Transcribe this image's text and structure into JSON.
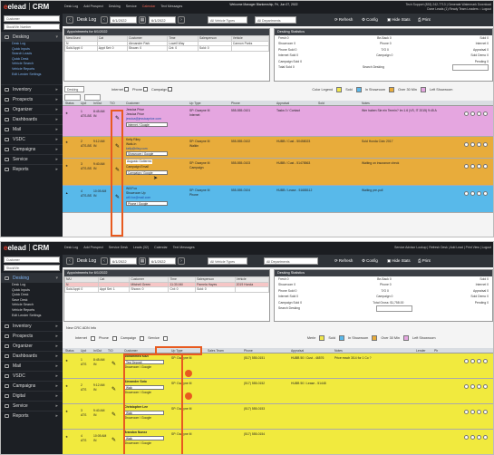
{
  "shot1": {
    "topbar": {
      "logo": "elead",
      "product": "CRM",
      "nav": [
        "Desk Log",
        "Add Prospect",
        "Desking",
        "Service",
        "Calendar",
        "Text Messages"
      ],
      "welcome": "Welcome Manager Blankenship, Fri, Jun 07, 2022",
      "right1": "Tech Support (833) 242-7713 | Generate Watermark Download",
      "right2": "Done Leads (1)  Ready Team Leaders  ○ Logout"
    },
    "sidebar": {
      "search_placeholder": "Customer",
      "search2": "Stock/Vin Number",
      "items": [
        "Desking",
        "Inventory",
        "Prospects",
        "Organizer",
        "Dashboards",
        "Mail",
        "VSDC",
        "Campaigns",
        "Service",
        "Reports"
      ],
      "desking_sub": [
        "Desk Log",
        "Quick Inputs",
        "Search Leads",
        "Quick Desk",
        "Vehicle Search",
        "Vehicle Reports",
        "Edit Lender Settings"
      ]
    },
    "toolbar": {
      "title": "Desk Log",
      "date_from": "6/1/2022",
      "date_to": "6/1/2022",
      "vehicles": "All Vehicle Types",
      "depts": "All Departments",
      "refresh": "Refresh",
      "config": "Config",
      "hide": "Hide Stats",
      "print": "Print"
    },
    "appointments": {
      "title": "Appointments for 6/1/2022",
      "headers": [
        "New/Used",
        "Cat",
        "Customer",
        "Time",
        "Salesperson",
        "Vehicle"
      ],
      "row": [
        "N",
        "",
        "Alexander Park",
        "Lowell Way",
        "",
        "Cannon Parks"
      ],
      "foot": [
        "Sold Appt: 0",
        "Appt Set: 0",
        "Shown: 0",
        "Cnt: 0",
        "Sold: 0"
      ]
    },
    "stats": {
      "title": "Desking Statistics",
      "rows": [
        [
          "Fresh 0",
          "Be-Back 0",
          "Sold 0"
        ],
        [
          "Showroom 0",
          "Phone 0",
          "Internet 0"
        ],
        [
          "Phone Sold 0",
          "T/O 0",
          "Appraisal 0"
        ],
        [
          "Internet Sold 0",
          "Campaign 0",
          "Sold Demo 0"
        ],
        [
          "Campaign Sold 0",
          "",
          "Pending 0"
        ],
        [
          "Total Sold 0",
          "",
          ""
        ]
      ],
      "search_label": "Search Desking"
    },
    "filters": {
      "desking": "Desking",
      "internet": "Internet",
      "phone": "Phone",
      "campaign": "Campaign",
      "legend": "Color Legend",
      "sold": "Sold",
      "in_showroom": "In Showroom",
      "over30": "Over 30 Min",
      "left": "Left Showroom"
    },
    "grid_headers": [
      "Status",
      "Up#",
      "In/Out",
      "T/O",
      "Customer",
      "Up Type",
      "Phone",
      "Appraisal",
      "Sold",
      "Notes"
    ],
    "rows": [
      {
        "color": "#e5a6e0",
        "name": "Jessica Price",
        "line2": "Jessica Price",
        "email": "jessica@jessicaprice.com",
        "phone": "555-555-0101",
        "type": "SP: Dwayne M",
        "sp": "Internet",
        "extra": "Tasks 0 / Contact",
        "note": "Wer haben Sie ein Termin? Im 1.6 (VS, IT 2015) 9:45 A"
      },
      {
        "color": "#e8ac3b",
        "name": "Kelly Riley",
        "line2": "Walk-In",
        "email": "kelly@riley.com",
        "phone": "555-555-0102",
        "type": "SP: Dwayne M",
        "sp": "Walkin",
        "extra": "HUBB / Cust - 50458023",
        "note": "Sold Honda Civic 2017"
      },
      {
        "color": "#e8ac3b",
        "name": "Augusto Gutierrez",
        "line2": "Campaign Email",
        "email": "",
        "phone": "555-555-0103",
        "type": "SP: Dwayne M",
        "sp": "Campaign",
        "extra": "HUBB / Cust - 51478563",
        "note": "Waiting on insurance check"
      },
      {
        "color": "#58b9ea",
        "name": "Will Fox",
        "line2": "Showroom Up",
        "email": "will.fox@mail.com",
        "phone": "555-555-0104",
        "type": "SP: Dwayne M",
        "sp": "Phone",
        "extra": "HUBB / Lease - 51688112",
        "note": "Waiting pre-pull"
      }
    ]
  },
  "shot2": {
    "topbar": {
      "logo": "elead",
      "product": "CRM",
      "nav": [
        "Desk Log",
        "Add Prospect",
        "Service Desk",
        "Leads (32)",
        "Calendar",
        "Text Messages"
      ],
      "right": "Service Advisor Lookup | Refresh Desk | Add Lead | Print View | Logout"
    },
    "sidebar": {
      "search_placeholder": "Customer",
      "search2": "Stock/Vin",
      "items": [
        "Desking",
        "Inventory",
        "Prospects",
        "Organizer",
        "Dashboards",
        "Mail",
        "VSDC",
        "Campaigns",
        "Digital",
        "Service",
        "Reports"
      ],
      "desking_sub": [
        "Desk Log",
        "Quick Inputs",
        "Quick Desk",
        "Save Desk",
        "Vehicle Search",
        "Vehicle Reports",
        "Edit Lender Settings"
      ]
    },
    "toolbar": {
      "title": "Desk Log",
      "date_from": "6/1/2022",
      "date_to": "6/1/2022",
      "vehicles": "All Vehicle Types",
      "depts": "All Departments",
      "refresh": "Refresh",
      "config": "Config",
      "hide": "Hide Stats",
      "print": "Print"
    },
    "appointments": {
      "title": "Appointments for 6/1/2022",
      "headers": [
        "N/U",
        "Cat",
        "Customer",
        "Time",
        "Salesperson",
        "Vehicle"
      ],
      "row": [
        "N",
        "",
        "Mitchell Green",
        "11:30 AM",
        "Pamela Hayes",
        "2019 Honda"
      ],
      "foot": [
        "Sold Appt: 0",
        "Appt Set: 1",
        "Shown: 0",
        "Cnt: 0",
        "Sold: 0"
      ]
    },
    "stats": {
      "title": "Desking Statistics",
      "rows": [
        [
          "Fresh 0",
          "Be-Back 0",
          "Sold 0"
        ],
        [
          "Showroom 0",
          "Phone 0",
          "Internet 0"
        ],
        [
          "Phone Sold 0",
          "T/O 0",
          "Appraisal 0"
        ],
        [
          "Internet Sold 0",
          "Campaign 0",
          "Sold Demo 0"
        ],
        [
          "Campaign Sold 0",
          "",
          "Pending 0"
        ],
        [
          "Total Sold 0",
          "",
          ""
        ]
      ],
      "search_label": "Search Desking",
      "gross": "Total Gross: $1,758.00"
    },
    "filter_title": "New CRC ADN Info",
    "filters": {
      "internet": "Internet",
      "phone": "Phone",
      "campaign": "Campaign",
      "service": "Service",
      "all": "All",
      "legend": "Merle",
      "sold": "Sold",
      "in_showroom": "In Showroom",
      "over30": "Over 30 Min",
      "left": "Left Showroom"
    },
    "grid_headers": [
      "Status",
      "Up#",
      "In/Out",
      "T/O",
      "Customer",
      "Up Type",
      "Sales Team",
      "Phone",
      "Appraisal",
      "Notes",
      "Lender",
      "Ph"
    ],
    "rows": [
      {
        "name": "Mohammed Kazi",
        "source": "Test Deposit",
        "src2": "Showroom / Google",
        "sp": "SP: Dwayne M",
        "phone": "(517) 555-0151",
        "note": "Price reach 3/14 for 1 Co ?",
        "extra": "HUBB 50 / Cust - 46576"
      },
      {
        "name": "Alexander Soto",
        "source": "Walk",
        "src2": "Showroom / Google",
        "sp": "SP: Dwayne M",
        "phone": "(517) 555-0152",
        "note": "",
        "extra": "HUBB 50 / Lease - 51448"
      },
      {
        "name": "Christopher Lee",
        "source": "Walk",
        "src2": "Showroom / Google",
        "sp": "SP: Dwayne M",
        "phone": "(517) 555-0153",
        "note": "",
        "extra": ""
      },
      {
        "name": "Brandon Nunez",
        "source": "Walk",
        "src2": "Showroom / Google",
        "sp": "SP: Dwayne M",
        "phone": "(517) 555-0154",
        "note": "",
        "extra": ""
      }
    ]
  }
}
